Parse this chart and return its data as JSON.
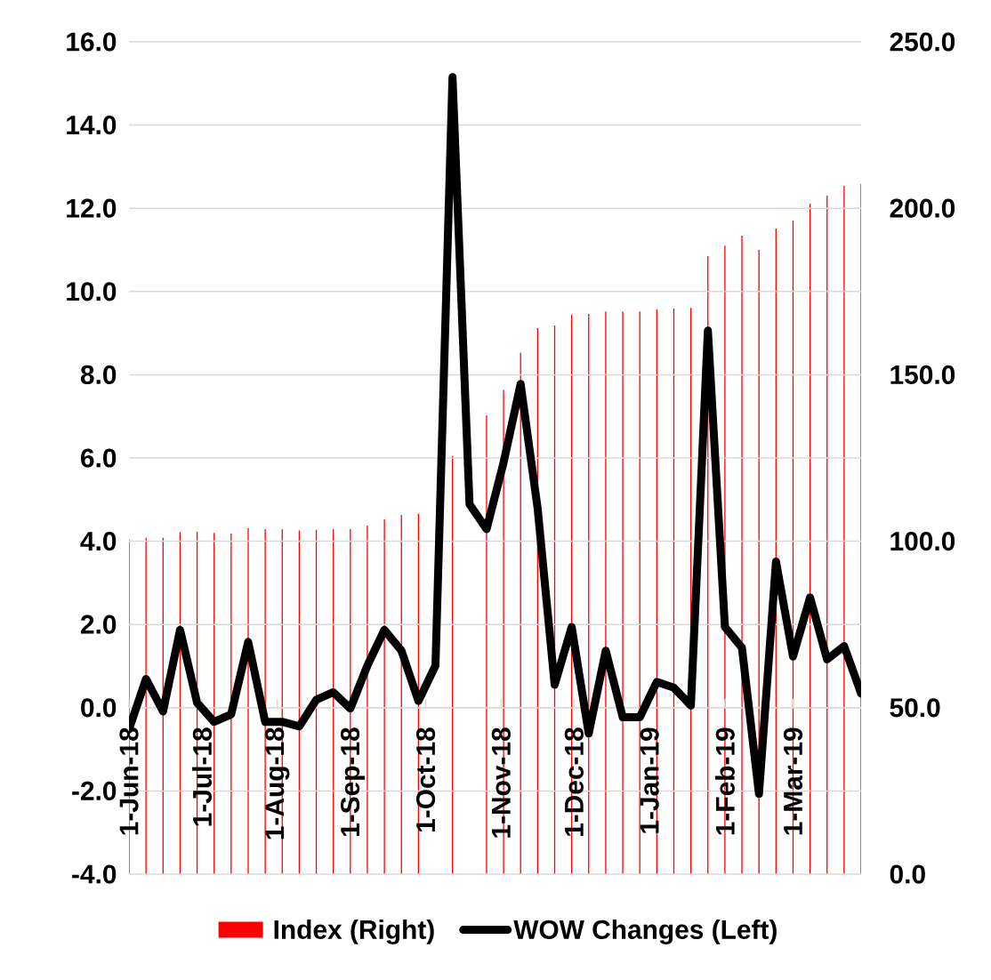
{
  "chart_data": {
    "type": "line",
    "x": [
      "2018-06-01",
      "2018-06-08",
      "2018-06-15",
      "2018-06-22",
      "2018-06-29",
      "2018-07-06",
      "2018-07-13",
      "2018-07-20",
      "2018-07-27",
      "2018-08-03",
      "2018-08-10",
      "2018-08-17",
      "2018-08-24",
      "2018-08-31",
      "2018-09-07",
      "2018-09-14",
      "2018-09-21",
      "2018-09-28",
      "2018-10-05",
      "2018-10-12",
      "2018-10-19",
      "2018-10-26",
      "2018-11-02",
      "2018-11-09",
      "2018-11-16",
      "2018-11-23",
      "2018-11-30",
      "2018-12-07",
      "2018-12-14",
      "2018-12-21",
      "2018-12-28",
      "2019-01-04",
      "2019-01-11",
      "2019-01-18",
      "2019-01-25",
      "2019-02-01",
      "2019-02-08",
      "2019-02-15",
      "2019-02-22",
      "2019-03-01",
      "2019-03-08",
      "2019-03-15",
      "2019-03-22",
      "2019-03-29"
    ],
    "series": [
      {
        "name": "Index (Right)",
        "type": "bar",
        "axis": "y2",
        "color": "#ff0000",
        "values": [
          100.5,
          101,
          101,
          102.7,
          102.8,
          102.5,
          102.3,
          103.9,
          103.6,
          103.6,
          103.2,
          103.4,
          103.6,
          103.6,
          104.7,
          106.6,
          107.9,
          108.2,
          null,
          125.7,
          null,
          137.8,
          145.4,
          156.6,
          164,
          164.8,
          168,
          168.3,
          169,
          169,
          169,
          169.6,
          169.9,
          170.1,
          185.6,
          188.8,
          191.8,
          187.5,
          193.9,
          196.3,
          201.4,
          203.8,
          206.7,
          207.3
        ]
      },
      {
        "name": "WOW Changes (Left)",
        "color": "#000000",
        "values": [
          -0.52,
          0.69,
          -0.09,
          1.87,
          0.12,
          -0.34,
          -0.16,
          1.58,
          -0.34,
          -0.34,
          -0.45,
          0.19,
          0.37,
          -0.02,
          1.01,
          1.87,
          1.37,
          0.16,
          1.01,
          15.15,
          4.89,
          4.29,
          5.89,
          7.78,
          4.79,
          0.55,
          1.94,
          -0.62,
          1.37,
          -0.23,
          -0.23,
          0.62,
          0.48,
          0.05,
          9.06,
          1.94,
          1.44,
          -2.07,
          3.51,
          1.23,
          2.65,
          1.16,
          1.48,
          0.34
        ]
      }
    ],
    "xlim": [
      "2018-06-01",
      "2019-03-29"
    ],
    "xticks": [
      {
        "value": "2018-06-01",
        "label": "1-Jun-18"
      },
      {
        "value": "2018-07-01",
        "label": "1-Jul-18"
      },
      {
        "value": "2018-08-01",
        "label": "1-Aug-18"
      },
      {
        "value": "2018-09-01",
        "label": "1-Sep-18"
      },
      {
        "value": "2018-10-01",
        "label": "1-Oct-18"
      },
      {
        "value": "2018-11-01",
        "label": "1-Nov-18"
      },
      {
        "value": "2018-12-01",
        "label": "1-Dec-18"
      },
      {
        "value": "2019-01-01",
        "label": "1-Jan-19"
      },
      {
        "value": "2019-02-01",
        "label": "1-Feb-19"
      },
      {
        "value": "2019-03-01",
        "label": "1-Mar-19"
      }
    ],
    "ylim": [
      -4,
      16
    ],
    "yticks": [
      {
        "value": -4,
        "label": "-4.0"
      },
      {
        "value": -2,
        "label": "-2.0"
      },
      {
        "value": 0,
        "label": "0.0"
      },
      {
        "value": 2,
        "label": "2.0"
      },
      {
        "value": 4,
        "label": "4.0"
      },
      {
        "value": 6,
        "label": "6.0"
      },
      {
        "value": 8,
        "label": "8.0"
      },
      {
        "value": 10,
        "label": "10.0"
      },
      {
        "value": 12,
        "label": "12.0"
      },
      {
        "value": 14,
        "label": "14.0"
      },
      {
        "value": 16,
        "label": "16.0"
      }
    ],
    "y2lim": [
      0,
      250
    ],
    "y2ticks": [
      {
        "value": 0,
        "label": "0.0"
      },
      {
        "value": 50,
        "label": "50.0"
      },
      {
        "value": 100,
        "label": "100.0"
      },
      {
        "value": 150,
        "label": "150.0"
      },
      {
        "value": 200,
        "label": "200.0"
      },
      {
        "value": 250,
        "label": "250.0"
      }
    ],
    "grid": "y",
    "legend": "bottom"
  }
}
